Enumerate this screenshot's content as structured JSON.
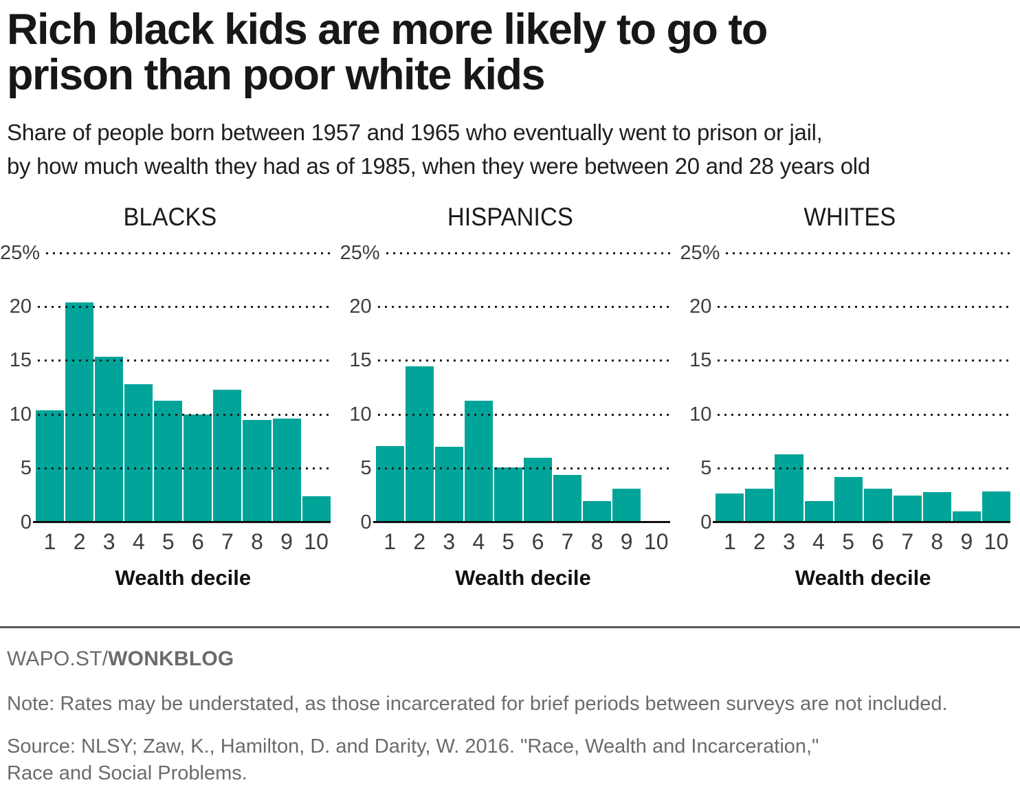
{
  "header": {
    "title_line1": "Rich black kids are more likely to go to",
    "title_line2": "prison than poor white kids",
    "subtitle_line1": "Share of people born between 1957 and 1965 who eventually went to prison or jail,",
    "subtitle_line2": "by how much wealth they had as of 1985, when they were between 20 and 28 years old"
  },
  "chart_data": [
    {
      "type": "bar",
      "title": "BLACKS",
      "categories": [
        "1",
        "2",
        "3",
        "4",
        "5",
        "6",
        "7",
        "8",
        "9",
        "10"
      ],
      "values": [
        10.4,
        20.4,
        15.4,
        12.8,
        11.3,
        10.0,
        12.3,
        9.5,
        9.6,
        2.4
      ],
      "xlabel": "Wealth decile",
      "ylabel": "",
      "ylim": [
        0,
        25
      ],
      "yticks": [
        0,
        5,
        10,
        15,
        20,
        25
      ],
      "ytick_labels": [
        "0",
        "5",
        "10",
        "15",
        "20",
        "25%"
      ],
      "grid": "horizontal dotted",
      "legend": "none"
    },
    {
      "type": "bar",
      "title": "HISPANICS",
      "categories": [
        "1",
        "2",
        "3",
        "4",
        "5",
        "6",
        "7",
        "8",
        "9",
        "10"
      ],
      "values": [
        7.1,
        14.5,
        7.0,
        11.3,
        5.1,
        6.0,
        4.4,
        2.0,
        3.1,
        0
      ],
      "xlabel": "Wealth decile",
      "ylabel": "",
      "ylim": [
        0,
        25
      ],
      "yticks": [
        0,
        5,
        10,
        15,
        20,
        25
      ],
      "ytick_labels": [
        "0",
        "5",
        "10",
        "15",
        "20",
        "25%"
      ],
      "grid": "horizontal dotted",
      "legend": "none"
    },
    {
      "type": "bar",
      "title": "WHITES",
      "categories": [
        "1",
        "2",
        "3",
        "4",
        "5",
        "6",
        "7",
        "8",
        "9",
        "10"
      ],
      "values": [
        2.7,
        3.1,
        6.3,
        2.0,
        4.2,
        3.1,
        2.5,
        2.8,
        1.0,
        2.9
      ],
      "xlabel": "Wealth decile",
      "ylabel": "",
      "ylim": [
        0,
        25
      ],
      "yticks": [
        0,
        5,
        10,
        15,
        20,
        25
      ],
      "ytick_labels": [
        "0",
        "5",
        "10",
        "15",
        "20",
        "25%"
      ],
      "grid": "horizontal dotted",
      "legend": "none"
    }
  ],
  "footer": {
    "brand_prefix": "WAPO.ST/",
    "brand_bold": "WONKBLOG",
    "note": "Note: Rates may be understated, as those incarcerated for brief periods between surveys are not included.",
    "source_line1": "Source: NLSY; Zaw, K., Hamilton, D. and Darity, W. 2016. \"Race, Wealth and Incarceration,\"",
    "source_line2": "Race and Social Problems."
  },
  "colors": {
    "bar": "#00a499",
    "grid_dot": "#1e1e1e",
    "axis_line": "#101010",
    "headline_text": "#171717",
    "tick_text": "#3d3d3d",
    "footer_text": "#6b6b6b",
    "footer_rule": "#58585a"
  }
}
